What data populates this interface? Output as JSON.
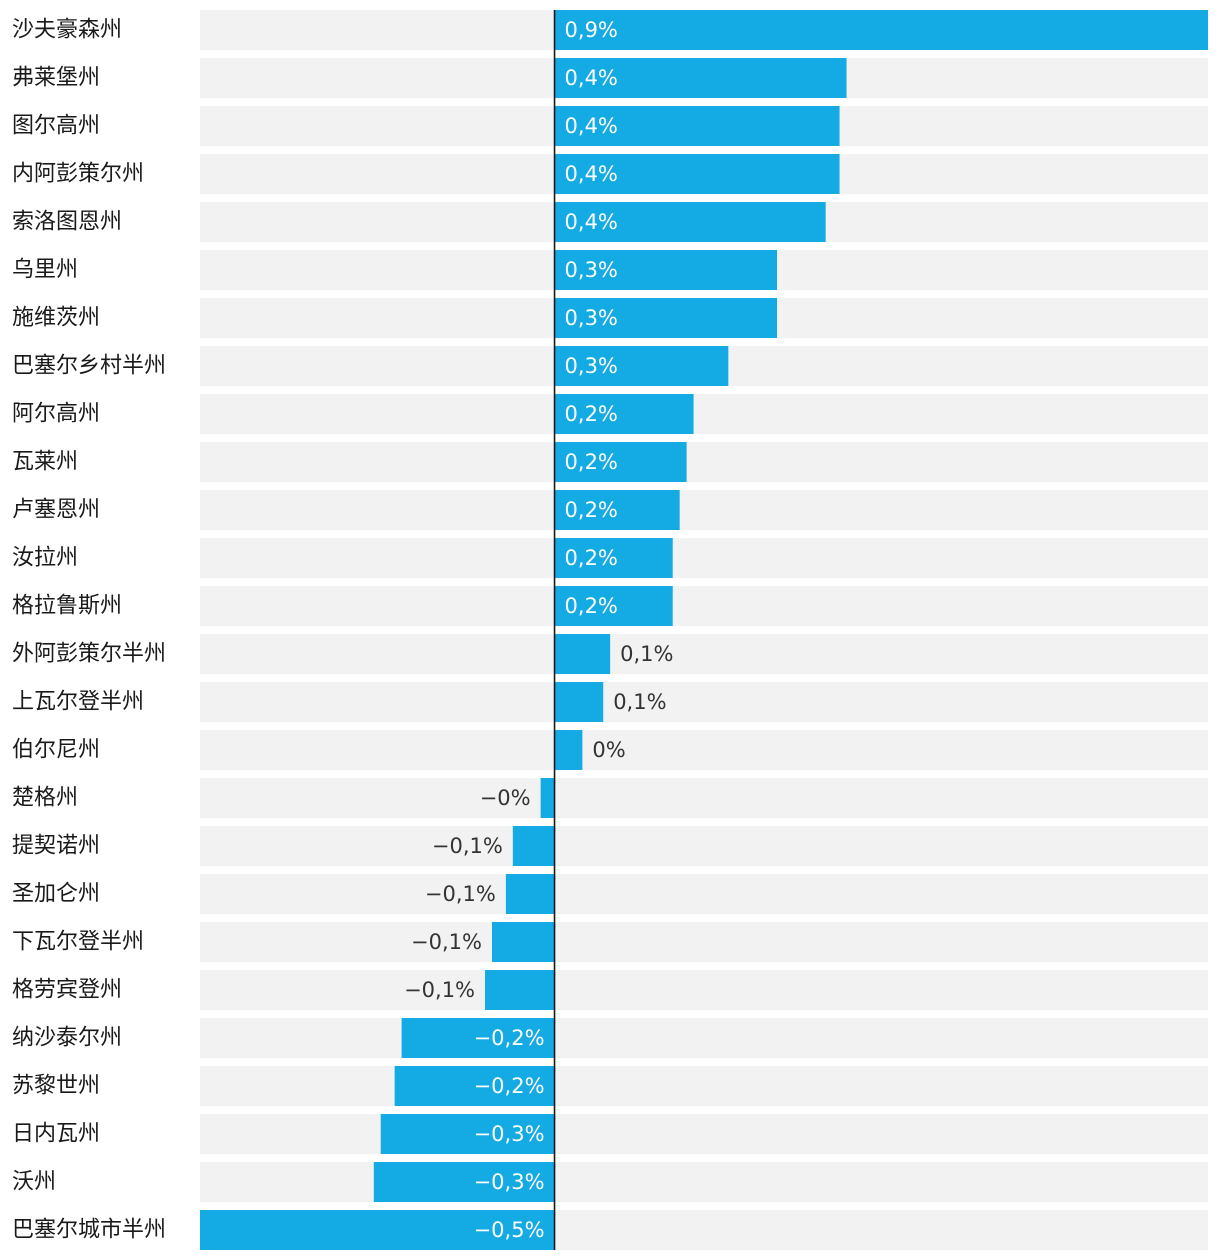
{
  "chart_data": {
    "type": "bar",
    "orientation": "horizontal",
    "categories": [
      "沙夫豪森州",
      "弗莱堡州",
      "图尔高州",
      "内阿彭策尔州",
      "索洛图恩州",
      "乌里州",
      "施维茨州",
      "巴塞尔乡村半州",
      "阿尔高州",
      "瓦莱州",
      "卢塞恩州",
      "汝拉州",
      "格拉鲁斯州",
      "外阿彭策尔半州",
      "上瓦尔登半州",
      "伯尔尼州",
      "楚格州",
      "提契诺州",
      "圣加仑州",
      "下瓦尔登半州",
      "格劳宾登州",
      "纳沙泰尔州",
      "苏黎世州",
      "日内瓦州",
      "沃州",
      "巴塞尔城市半州"
    ],
    "values": [
      0.94,
      0.42,
      0.41,
      0.41,
      0.39,
      0.32,
      0.32,
      0.25,
      0.2,
      0.19,
      0.18,
      0.17,
      0.17,
      0.08,
      0.07,
      0.04,
      -0.02,
      -0.06,
      -0.07,
      -0.09,
      -0.1,
      -0.22,
      -0.23,
      -0.25,
      -0.26,
      -0.51
    ],
    "labels": [
      "0,9%",
      "0,4%",
      "0,4%",
      "0,4%",
      "0,4%",
      "0,3%",
      "0,3%",
      "0,3%",
      "0,2%",
      "0,2%",
      "0,2%",
      "0,2%",
      "0,2%",
      "0,1%",
      "0,1%",
      "0%",
      "−0%",
      "−0,1%",
      "−0,1%",
      "−0,1%",
      "−0,1%",
      "−0,2%",
      "−0,2%",
      "−0,3%",
      "−0,3%",
      "−0,5%"
    ],
    "xlim": [
      -0.51,
      0.94
    ],
    "bar_color": "#14aae3",
    "track_color": "#f2f2f2",
    "axis_color": "#1a1a1a",
    "inside_label_color": "#ffffff",
    "outside_label_color": "#333333",
    "title": "",
    "xlabel": "",
    "ylabel": ""
  }
}
